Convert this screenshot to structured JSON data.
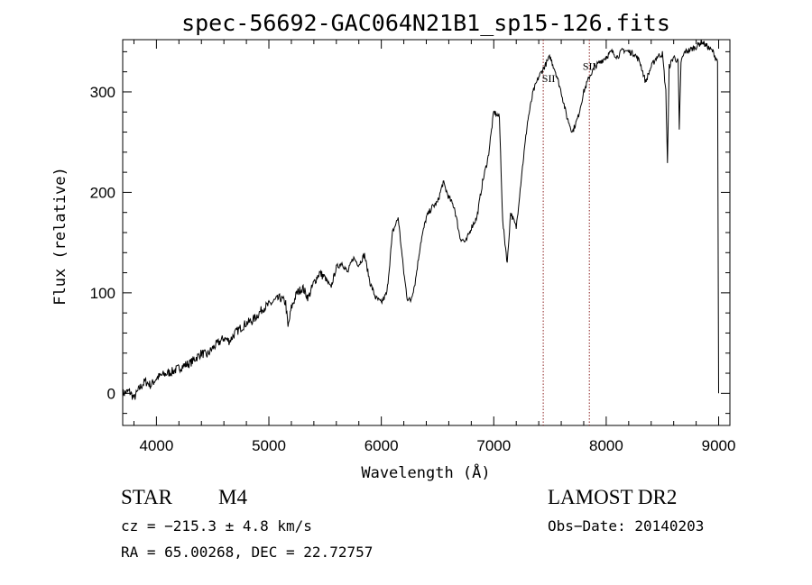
{
  "chart_data": {
    "type": "line",
    "title": "spec-56692-GAC064N21B1_sp15-126.fits",
    "xlabel": "Wavelength (Å)",
    "ylabel": "Flux (relative)",
    "xlim": [
      3700,
      9100
    ],
    "ylim": [
      -32,
      352
    ],
    "x_ticks": [
      4000,
      5000,
      6000,
      7000,
      8000,
      9000
    ],
    "y_ticks": [
      0,
      100,
      200,
      300
    ],
    "x_tick_labels": [
      "4000",
      "5000",
      "6000",
      "7000",
      "8000",
      "9000"
    ],
    "y_tick_labels": [
      "0",
      "100",
      "200",
      "300"
    ],
    "series": [
      {
        "name": "spectrum",
        "color": "#000000",
        "x": [
          3700,
          3760,
          3800,
          3850,
          3900,
          3950,
          4000,
          4050,
          4100,
          4150,
          4200,
          4250,
          4300,
          4350,
          4400,
          4450,
          4500,
          4550,
          4600,
          4650,
          4700,
          4750,
          4800,
          4850,
          4900,
          4950,
          5000,
          5050,
          5100,
          5150,
          5170,
          5200,
          5250,
          5300,
          5350,
          5400,
          5450,
          5500,
          5550,
          5600,
          5650,
          5700,
          5750,
          5800,
          5850,
          5900,
          5950,
          6000,
          6050,
          6100,
          6150,
          6200,
          6230,
          6260,
          6300,
          6350,
          6400,
          6450,
          6500,
          6550,
          6600,
          6650,
          6700,
          6750,
          6800,
          6850,
          6900,
          6950,
          7000,
          7050,
          7080,
          7120,
          7150,
          7200,
          7250,
          7300,
          7350,
          7400,
          7450,
          7500,
          7550,
          7600,
          7650,
          7700,
          7750,
          7800,
          7850,
          7900,
          7950,
          8000,
          8050,
          8100,
          8150,
          8200,
          8250,
          8300,
          8350,
          8400,
          8450,
          8500,
          8530,
          8545,
          8560,
          8600,
          8640,
          8650,
          8665,
          8700,
          8750,
          8800,
          8850,
          8900,
          8950,
          8990,
          9000
        ],
        "y": [
          0,
          2,
          -5,
          5,
          12,
          8,
          15,
          18,
          20,
          22,
          25,
          28,
          30,
          35,
          40,
          38,
          45,
          50,
          55,
          52,
          60,
          65,
          70,
          72,
          78,
          85,
          88,
          92,
          95,
          90,
          65,
          85,
          100,
          105,
          95,
          110,
          120,
          115,
          105,
          125,
          130,
          120,
          135,
          128,
          138,
          110,
          95,
          90,
          100,
          160,
          175,
          120,
          95,
          92,
          110,
          150,
          175,
          185,
          190,
          210,
          195,
          185,
          155,
          150,
          165,
          175,
          210,
          235,
          280,
          275,
          170,
          130,
          180,
          165,
          220,
          270,
          300,
          315,
          325,
          335,
          320,
          300,
          275,
          260,
          275,
          300,
          315,
          325,
          330,
          335,
          340,
          335,
          342,
          340,
          338,
          330,
          310,
          325,
          335,
          338,
          300,
          230,
          325,
          335,
          330,
          260,
          330,
          340,
          342,
          345,
          350,
          345,
          340,
          330,
          0
        ]
      }
    ],
    "reference_lines": [
      {
        "x": 7440,
        "label": "SII",
        "color": "#8b2020"
      },
      {
        "x": 7850,
        "label": "SII",
        "color": "#8b2020"
      }
    ]
  },
  "info": {
    "class": "STAR",
    "subclass": "M4",
    "survey": "LAMOST DR2",
    "velocity": "cz = −215.3 ± 4.8 km/s",
    "obs_date": "Obs−Date: 20140203",
    "coords": "RA =  65.00268, DEC =  22.72757"
  }
}
